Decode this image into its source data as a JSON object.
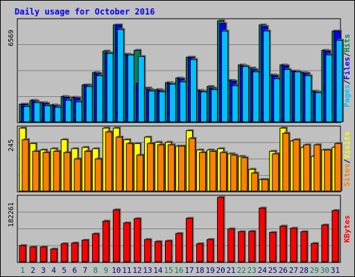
{
  "chart_data": {
    "type": "bar",
    "title": "Daily usage for October 2016",
    "categories": [
      "1",
      "2",
      "3",
      "4",
      "5",
      "6",
      "7",
      "8",
      "9",
      "10",
      "11",
      "12",
      "13",
      "14",
      "15",
      "16",
      "17",
      "18",
      "19",
      "20",
      "21",
      "22",
      "23",
      "24",
      "25",
      "26",
      "27",
      "28",
      "29",
      "30",
      "31"
    ],
    "weekend_days": [
      "1",
      "8",
      "9",
      "15",
      "16",
      "22",
      "23",
      "29",
      "30"
    ],
    "panels": [
      {
        "id": "hits",
        "ymax_label": "6569",
        "ymax": 6569,
        "legend": [
          "Pages",
          "/",
          "Files",
          "/",
          "Hits"
        ],
        "legend_colors": [
          "#00c0ff",
          "#000000",
          "#0000ff",
          "#000000",
          "#00805c"
        ],
        "series": [
          {
            "name": "Hits",
            "color": "#00805c",
            "values": [
              1150,
              1400,
              1250,
              1100,
              1650,
              1600,
              2400,
              3200,
              4600,
              6300,
              4400,
              4650,
              2200,
              2100,
              2550,
              2850,
              4200,
              2050,
              2300,
              6569,
              2700,
              3700,
              3500,
              6300,
              3050,
              3700,
              3300,
              3200,
              2000,
              4650,
              5900
            ]
          },
          {
            "name": "Files",
            "color": "#0000ff",
            "values": [
              1150,
              1350,
              1200,
              1050,
              1600,
              1550,
              2400,
              3150,
              4500,
              6300,
              4350,
              2500,
              2100,
              2050,
              2500,
              2800,
              4200,
              2000,
              2200,
              6400,
              2650,
              3650,
              3400,
              6200,
              3000,
              3650,
              3300,
              3150,
              1950,
              4600,
              5900
            ]
          },
          {
            "name": "Pages",
            "color": "#00c0ff",
            "values": [
              1000,
              1250,
              1050,
              950,
              1400,
              1300,
              2300,
              3000,
              4450,
              6000,
              4350,
              4250,
              2000,
              1950,
              2450,
              2600,
              4050,
              1950,
              2100,
              5900,
              2350,
              3600,
              3250,
              5900,
              2800,
              3400,
              3250,
              3000,
              1900,
              4350,
              5300
            ]
          }
        ]
      },
      {
        "id": "visits",
        "ymax_label": "245",
        "ymax": 245,
        "legend": [
          "Sites",
          "/",
          "Visits"
        ],
        "legend_colors": [
          "#ff8000",
          "#000000",
          "#ffff00"
        ],
        "series": [
          {
            "name": "Visits",
            "color": "#ffff00",
            "values": [
              245,
              185,
              160,
              165,
              200,
              165,
              170,
              165,
              245,
              245,
              200,
              185,
              210,
              190,
              190,
              175,
              235,
              160,
              160,
              165,
              145,
              135,
              85,
              45,
              155,
              245,
              195,
              170,
              135,
              160,
              170
            ]
          },
          {
            "name": "Sites",
            "color": "#ff8000",
            "values": [
              200,
              155,
              150,
              155,
              150,
              125,
              155,
              125,
              230,
              210,
              185,
              140,
              185,
              180,
              180,
              175,
              205,
              150,
              155,
              150,
              140,
              130,
              70,
              45,
              145,
              225,
              200,
              180,
              180,
              160,
              185
            ]
          }
        ]
      },
      {
        "id": "kbytes",
        "ymax_label": "182261",
        "ymax": 182261,
        "legend": [
          "KBytes"
        ],
        "legend_colors": [
          "#ff0000"
        ],
        "series": [
          {
            "name": "KBytes",
            "color": "#ff0000",
            "values": [
              46000,
              42000,
              42000,
              36000,
              51000,
              53000,
              61000,
              79000,
              115000,
              147000,
              110000,
              122000,
              63000,
              57000,
              59000,
              80000,
              123000,
              51000,
              63000,
              182261,
              93000,
              85000,
              86000,
              152000,
              83000,
              101000,
              95000,
              85000,
              52000,
              104000,
              145000
            ]
          }
        ]
      }
    ],
    "colors": {
      "background": "#c0c0c0",
      "plot_background": "#c0c0c0",
      "title": "#0000ff",
      "axis_label": "#000000",
      "weekday_label": "#000080",
      "weekend_label": "#00805c"
    }
  }
}
